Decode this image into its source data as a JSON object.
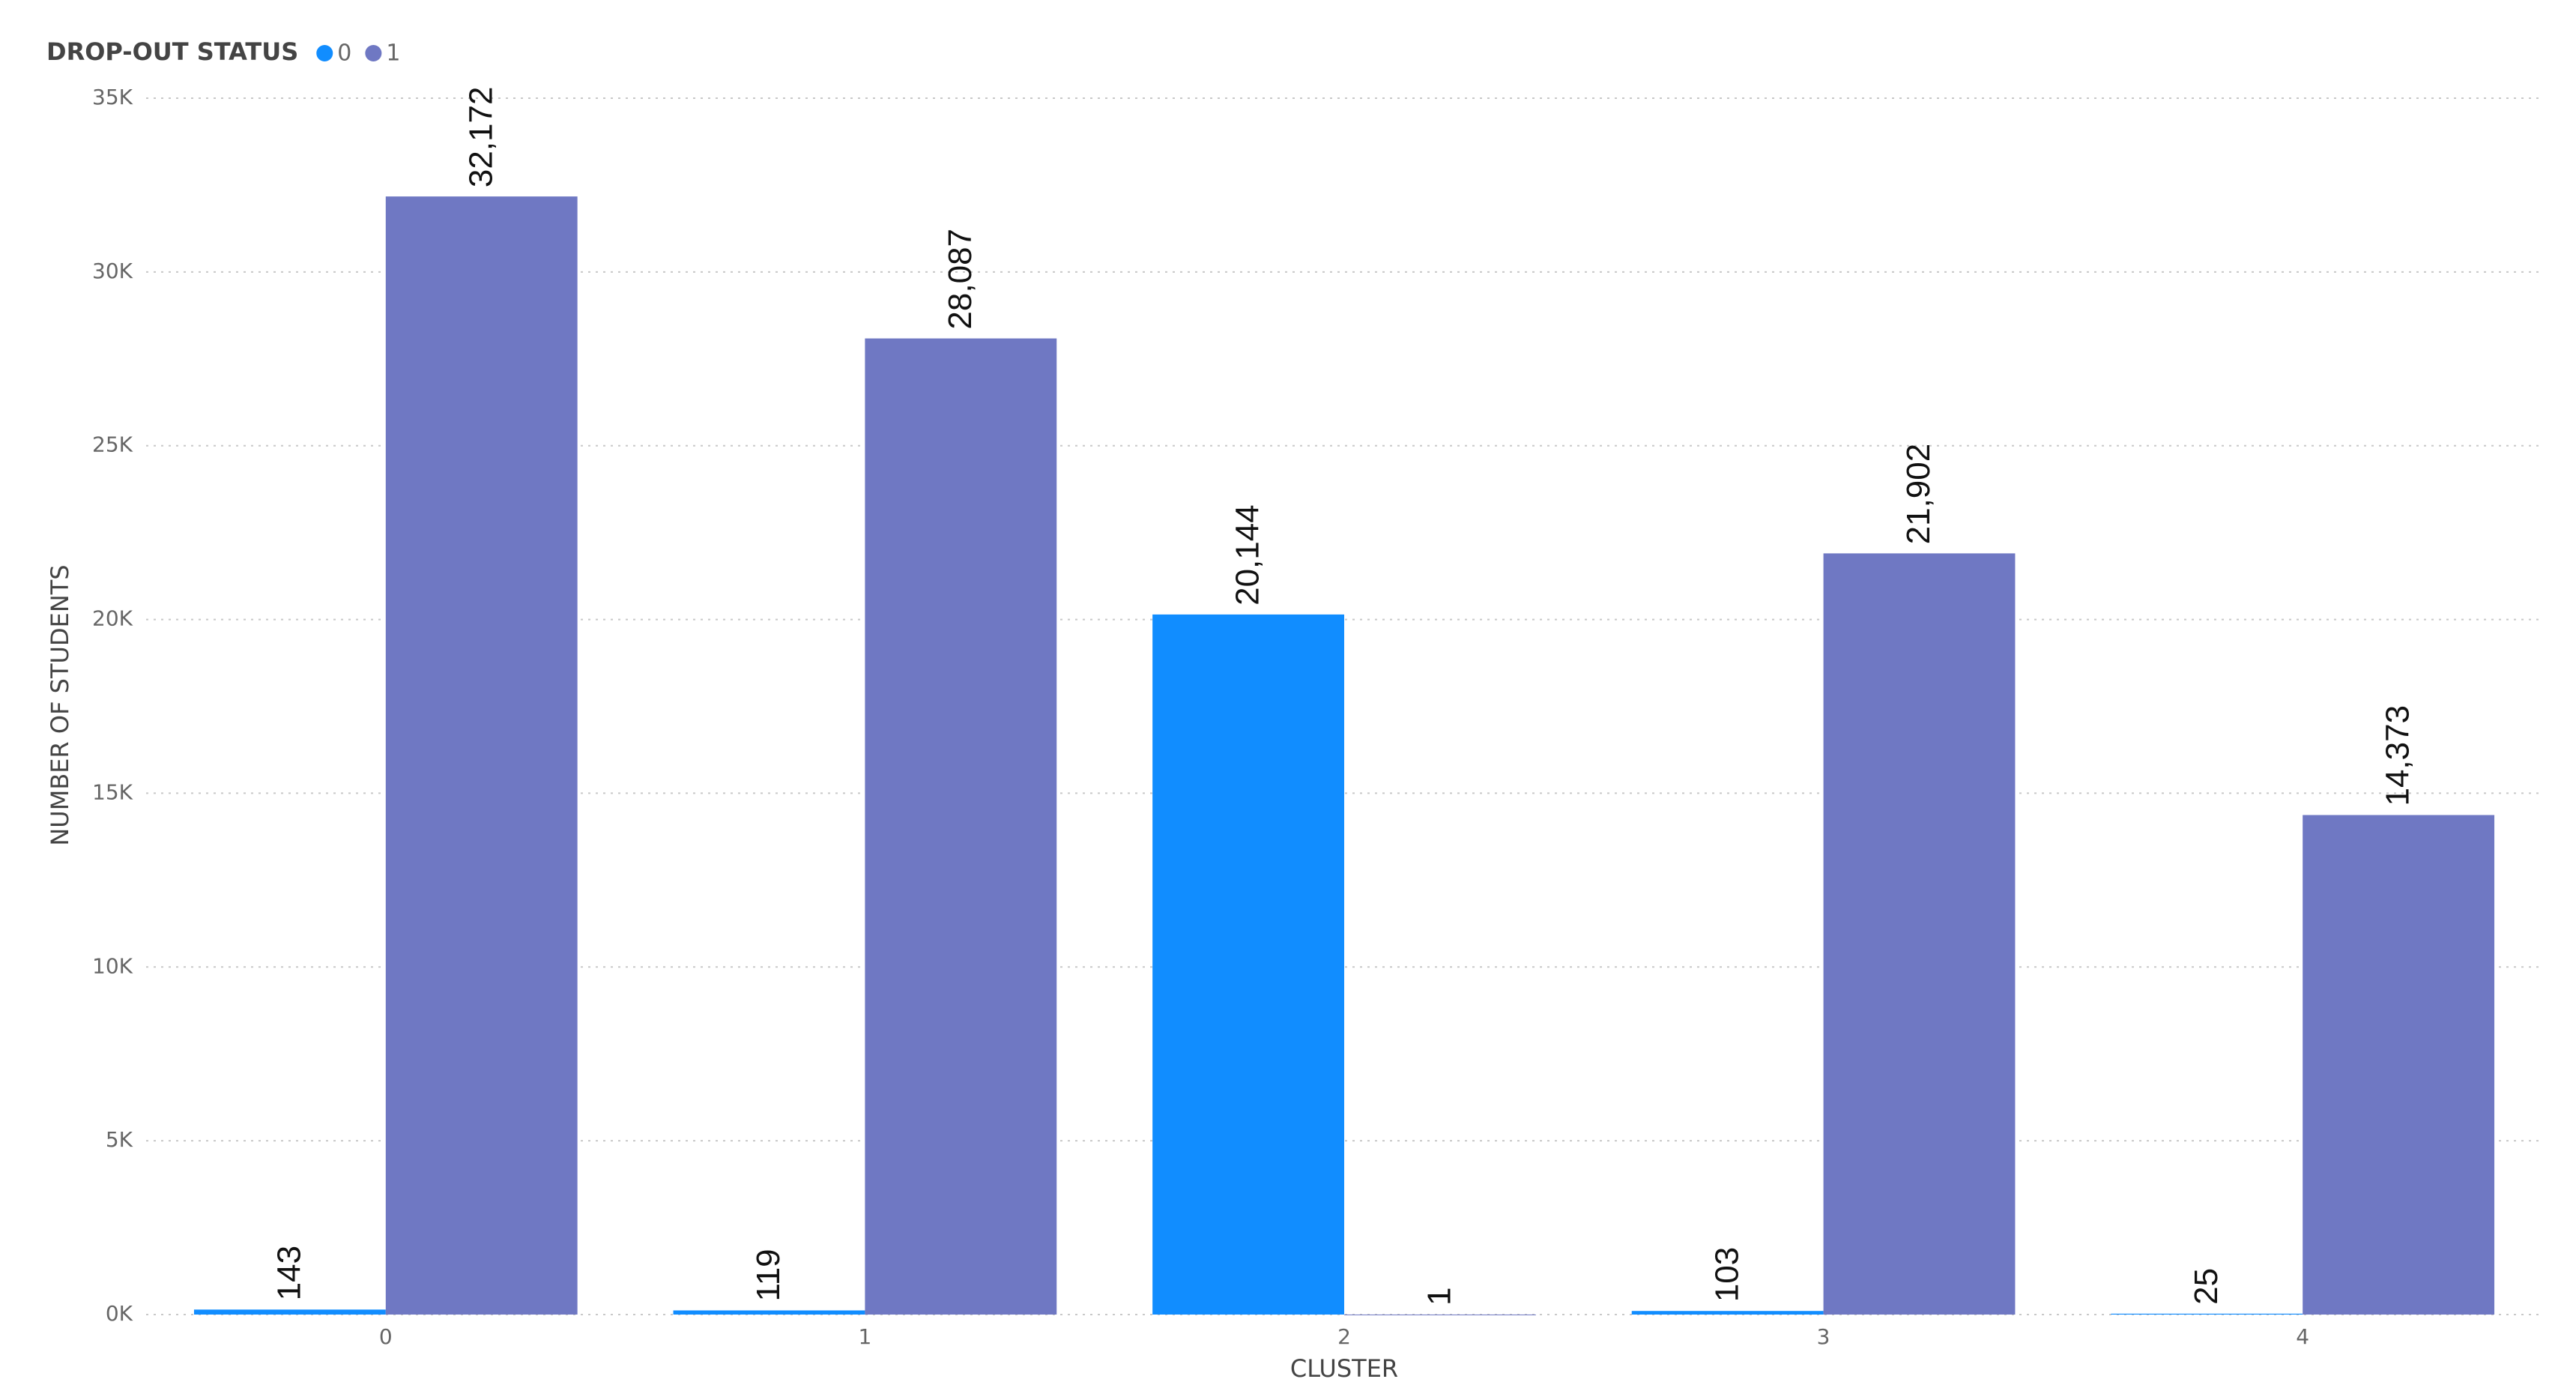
{
  "chart_data": {
    "type": "bar",
    "legend_title": "DROP-OUT STATUS",
    "x_label": "CLUSTER",
    "y_label": "NUMBER OF STUDENTS",
    "categories": [
      "0",
      "1",
      "2",
      "3",
      "4"
    ],
    "series": [
      {
        "name": "0",
        "color": "#118dff",
        "values": [
          143,
          119,
          20144,
          103,
          25
        ],
        "value_labels": [
          "143",
          "119",
          "20,144",
          "103",
          "25"
        ]
      },
      {
        "name": "1",
        "color": "#6f78c3",
        "values": [
          32172,
          28087,
          1,
          21902,
          14373
        ],
        "value_labels": [
          "32,172",
          "28,087",
          "1",
          "21,902",
          "14,373"
        ]
      }
    ],
    "ylim": [
      0,
      35000
    ],
    "yticks": [
      {
        "value": 0,
        "label": "0K"
      },
      {
        "value": 5000,
        "label": "5K"
      },
      {
        "value": 10000,
        "label": "10K"
      },
      {
        "value": 15000,
        "label": "15K"
      },
      {
        "value": 20000,
        "label": "20K"
      },
      {
        "value": 25000,
        "label": "25K"
      },
      {
        "value": 30000,
        "label": "30K"
      },
      {
        "value": 35000,
        "label": "35K"
      }
    ],
    "grid": true,
    "legend": "top-left"
  }
}
